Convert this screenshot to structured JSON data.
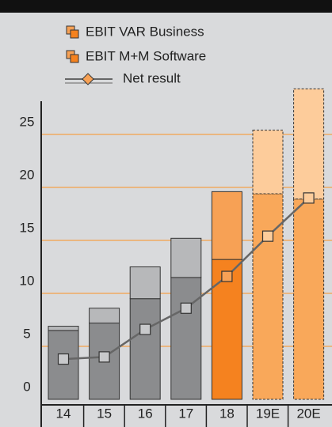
{
  "chart_data": {
    "type": "bar",
    "categories": [
      "14",
      "15",
      "16",
      "17",
      "18",
      "19E",
      "20E"
    ],
    "series": [
      {
        "name": "EBIT VAR Business",
        "colors": [
          "#8b8c8e",
          "#8b8c8e",
          "#8b8c8e",
          "#8b8c8e",
          "#f5821f",
          "#f9a85a",
          "#f9a85a"
        ],
        "values": [
          6.5,
          7.2,
          9.5,
          11.5,
          13.2,
          19.4,
          18.9
        ]
      },
      {
        "name": "EBIT M+M Software",
        "colors": [
          "#b7b8ba",
          "#b7b8ba",
          "#b7b8ba",
          "#b7b8ba",
          "#f7a155",
          "#fdcc9b",
          "#fdcc9b"
        ],
        "values": [
          0.4,
          1.4,
          3.0,
          3.7,
          6.4,
          6.0,
          10.4
        ]
      },
      {
        "name": "Net result",
        "type": "line",
        "color": "#666666",
        "marker_colors": [
          "#c8c9cb",
          "#c8c9cb",
          "#c8c9cb",
          "#c8c9cb",
          "#f7a155",
          "#fdcc9b",
          "#fdcc9b"
        ],
        "values": [
          3.8,
          4.0,
          6.6,
          8.6,
          11.6,
          15.4,
          19.0
        ]
      }
    ],
    "dashed": [
      false,
      false,
      false,
      false,
      false,
      true,
      true
    ],
    "ylim": [
      0,
      30
    ],
    "yticks": [
      0,
      5,
      10,
      15,
      20,
      25
    ],
    "grid": true,
    "grid_color": "#f5a04a"
  }
}
